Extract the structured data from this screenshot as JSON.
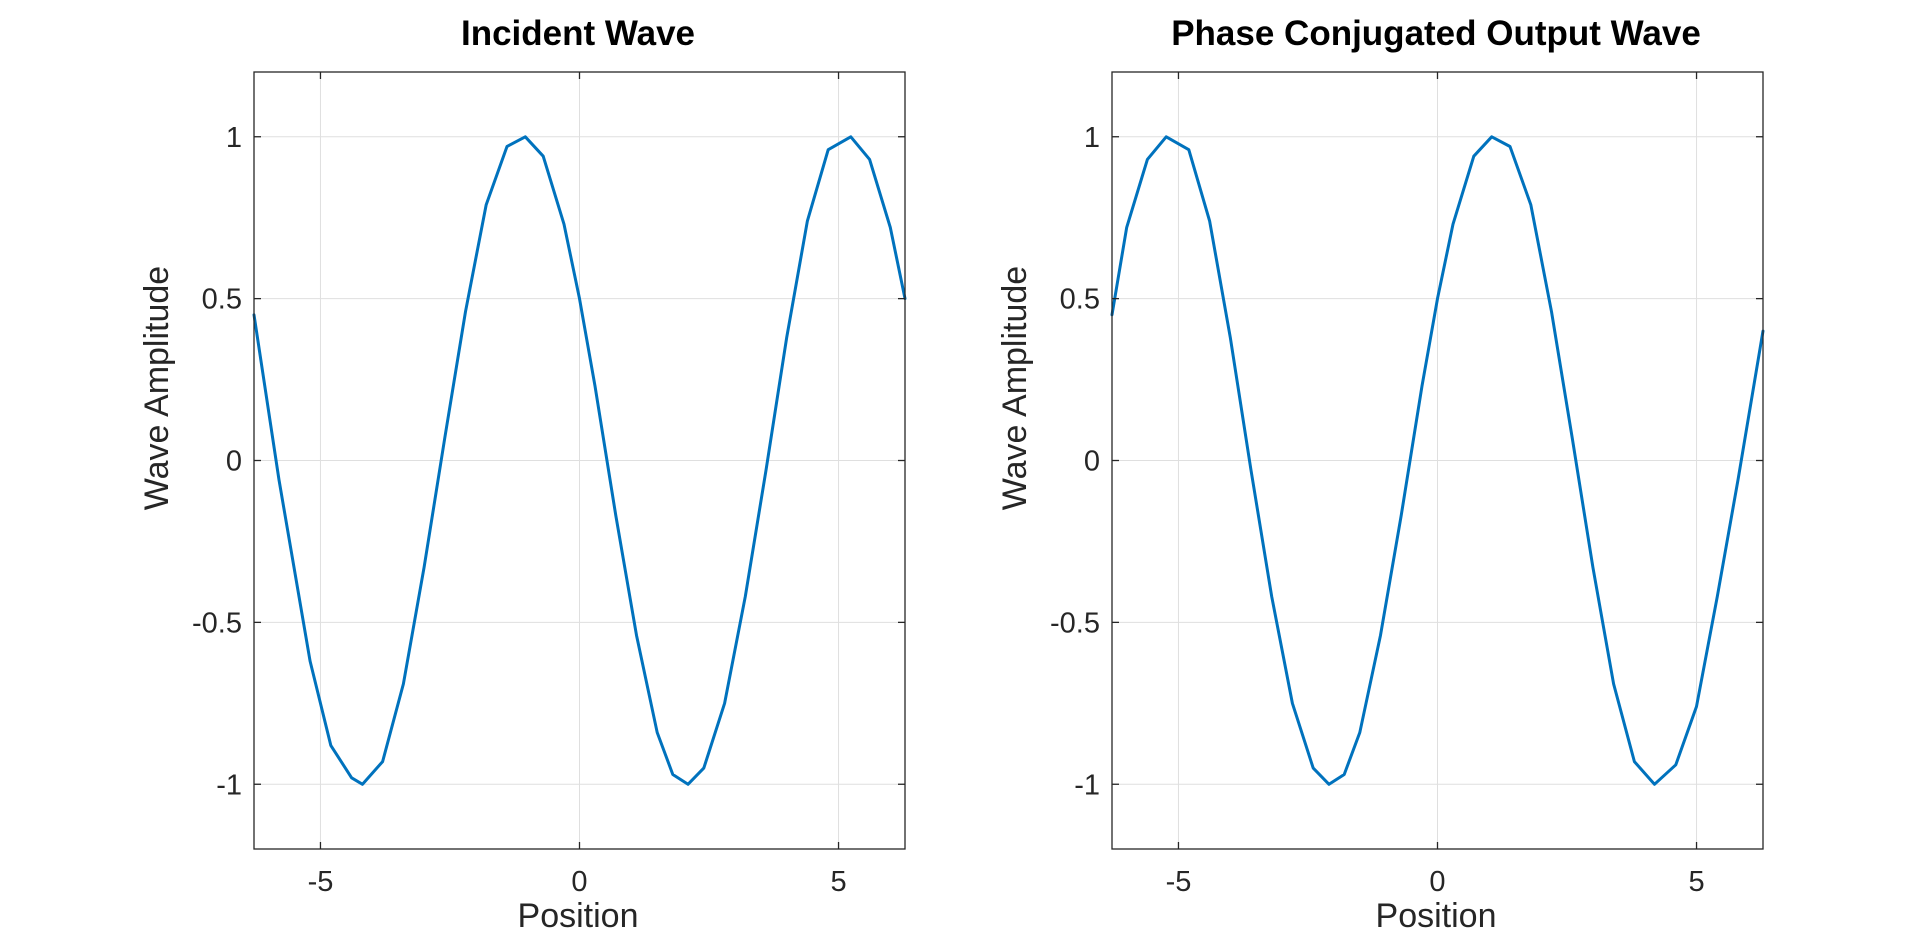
{
  "figure": {
    "background": "#ffffff",
    "grid": true,
    "line_color": "#0072BD"
  },
  "chart_data": [
    {
      "type": "line",
      "title": "Incident Wave",
      "xlabel": "Position",
      "ylabel": "Wave Amplitude",
      "xlim": [
        -6.283,
        6.283
      ],
      "ylim": [
        -1.2,
        1.2
      ],
      "xticks": [
        -5,
        0,
        5
      ],
      "xtick_labels": [
        "-5",
        "0",
        "5"
      ],
      "yticks": [
        -1,
        -0.5,
        0,
        0.5,
        1
      ],
      "ytick_labels": [
        "-1",
        "-0.5",
        "0",
        "0.5",
        "1"
      ],
      "series": [
        {
          "color": "#0072BD",
          "x": [
            -6.283,
            -5.8,
            -5.2,
            -4.8,
            -4.4,
            -4.189,
            -3.8,
            -3.4,
            -3.0,
            -2.6,
            -2.2,
            -1.8,
            -1.4,
            -1.047,
            -0.7,
            -0.3,
            0.0,
            0.3,
            0.7,
            1.1,
            1.5,
            1.8,
            2.094,
            2.4,
            2.8,
            3.2,
            3.6,
            4.0,
            4.4,
            4.8,
            5.236,
            5.6,
            6.0,
            6.283
          ],
          "y": [
            0.45,
            -0.06,
            -0.62,
            -0.88,
            -0.98,
            -1.0,
            -0.93,
            -0.69,
            -0.33,
            0.07,
            0.46,
            0.79,
            0.97,
            1.0,
            0.94,
            0.73,
            0.5,
            0.23,
            -0.17,
            -0.54,
            -0.84,
            -0.97,
            -1.0,
            -0.95,
            -0.75,
            -0.42,
            -0.03,
            0.38,
            0.74,
            0.96,
            1.0,
            0.93,
            0.72,
            0.5
          ]
        }
      ]
    },
    {
      "type": "line",
      "title": "Phase Conjugated Output Wave",
      "xlabel": "Position",
      "ylabel": "Wave Amplitude",
      "xlim": [
        -6.283,
        6.283
      ],
      "ylim": [
        -1.2,
        1.2
      ],
      "xticks": [
        -5,
        0,
        5
      ],
      "xtick_labels": [
        "-5",
        "0",
        "5"
      ],
      "yticks": [
        -1,
        -0.5,
        0,
        0.5,
        1
      ],
      "ytick_labels": [
        "-1",
        "-0.5",
        "0",
        "0.5",
        "1"
      ],
      "series": [
        {
          "color": "#0072BD",
          "x": [
            -6.283,
            -6.0,
            -5.6,
            -5.236,
            -4.8,
            -4.4,
            -4.0,
            -3.6,
            -3.2,
            -2.8,
            -2.4,
            -2.094,
            -1.8,
            -1.5,
            -1.1,
            -0.7,
            -0.3,
            0.0,
            0.3,
            0.7,
            1.047,
            1.4,
            1.8,
            2.2,
            2.6,
            3.0,
            3.4,
            3.8,
            4.189,
            4.6,
            5.0,
            5.4,
            5.8,
            6.283
          ],
          "y": [
            0.45,
            0.72,
            0.93,
            1.0,
            0.96,
            0.74,
            0.38,
            -0.03,
            -0.42,
            -0.75,
            -0.95,
            -1.0,
            -0.97,
            -0.84,
            -0.54,
            -0.17,
            0.23,
            0.5,
            0.73,
            0.94,
            1.0,
            0.97,
            0.79,
            0.46,
            0.07,
            -0.33,
            -0.69,
            -0.93,
            -1.0,
            -0.94,
            -0.76,
            -0.42,
            -0.06,
            0.4
          ]
        }
      ]
    }
  ]
}
